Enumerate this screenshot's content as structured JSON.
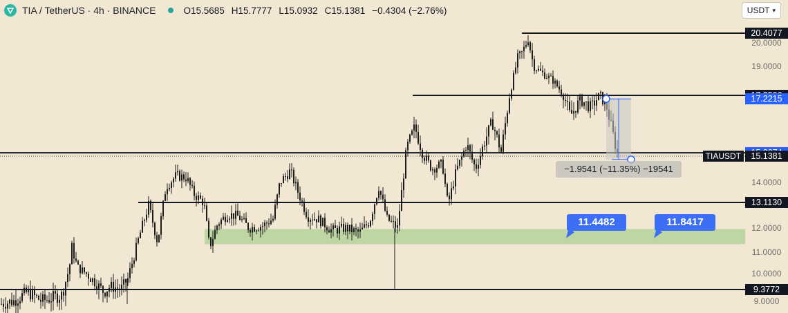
{
  "header": {
    "title": "TIA / TetherUS · 4h · BINANCE",
    "open": "O15.5685",
    "high": "H15.7777",
    "low": "L15.0932",
    "close": "C15.1381",
    "change": "−0.4304 (−2.76%)"
  },
  "currency": {
    "label": "USDT"
  },
  "symbol_tag": "TIAUSDT",
  "measure": {
    "text": "−1.9541 (−11.35%) −19541"
  },
  "chart_data": {
    "type": "candlestick",
    "symbol": "TIAUSDT",
    "timeframe": "4h",
    "exchange": "BINANCE",
    "ylim": [
      8.9,
      21.0
    ],
    "y_ticks": [
      "9.0000",
      "10.0000",
      "11.0000",
      "12.0000",
      "14.0000",
      "19.0000",
      "20.0000"
    ],
    "current_price": "15.1381",
    "horizontal_levels": [
      {
        "value": 20.4077,
        "label": "20.4077"
      },
      {
        "value": 17.3506,
        "label": "17.3506"
      },
      {
        "value": 15.2598,
        "label": "15.2598"
      },
      {
        "value": 13.113,
        "label": "13.1130"
      },
      {
        "value": 9.3772,
        "label": "9.3772"
      }
    ],
    "measure_labels": [
      {
        "value": 17.2215,
        "label": "17.2215"
      },
      {
        "value": 15.2674,
        "label": "15.2674"
      }
    ],
    "support_zone": {
      "low": 11.4482,
      "high": 11.8417
    },
    "callouts": [
      {
        "text": "11.4482",
        "value": 11.4482
      },
      {
        "text": "11.8417",
        "value": 11.8417
      }
    ],
    "price_path_anchors": [
      [
        0,
        8.9
      ],
      [
        20,
        9.0
      ],
      [
        40,
        9.3
      ],
      [
        60,
        9.0
      ],
      [
        90,
        9.2
      ],
      [
        100,
        10.2
      ],
      [
        104,
        11.2
      ],
      [
        112,
        10.3
      ],
      [
        125,
        10.0
      ],
      [
        140,
        9.6
      ],
      [
        150,
        9.3
      ],
      [
        160,
        9.5
      ],
      [
        175,
        9.4
      ],
      [
        185,
        9.8
      ],
      [
        200,
        11.5
      ],
      [
        215,
        13.0
      ],
      [
        228,
        11.4
      ],
      [
        240,
        13.8
      ],
      [
        255,
        14.3
      ],
      [
        270,
        14.2
      ],
      [
        280,
        13.5
      ],
      [
        295,
        13.1
      ],
      [
        303,
        11.2
      ],
      [
        315,
        12.2
      ],
      [
        330,
        12.6
      ],
      [
        345,
        12.5
      ],
      [
        360,
        12.0
      ],
      [
        380,
        12.1
      ],
      [
        395,
        12.4
      ],
      [
        405,
        14.0
      ],
      [
        420,
        14.5
      ],
      [
        432,
        13.5
      ],
      [
        445,
        12.5
      ],
      [
        460,
        12.4
      ],
      [
        480,
        11.9
      ],
      [
        500,
        12.0
      ],
      [
        520,
        11.8
      ],
      [
        535,
        12.3
      ],
      [
        548,
        13.8
      ],
      [
        560,
        12.4
      ],
      [
        575,
        12.0
      ],
      [
        588,
        15.4
      ],
      [
        600,
        16.2
      ],
      [
        612,
        15.2
      ],
      [
        625,
        14.6
      ],
      [
        640,
        14.8
      ],
      [
        648,
        13.0
      ],
      [
        660,
        14.5
      ],
      [
        675,
        15.6
      ],
      [
        688,
        14.6
      ],
      [
        700,
        15.6
      ],
      [
        712,
        16.4
      ],
      [
        725,
        15.3
      ],
      [
        735,
        17.0
      ],
      [
        748,
        19.3
      ],
      [
        756,
        19.6
      ],
      [
        764,
        20.2
      ],
      [
        772,
        19.0
      ],
      [
        785,
        18.6
      ],
      [
        800,
        18.2
      ],
      [
        815,
        17.4
      ],
      [
        825,
        16.6
      ],
      [
        840,
        17.2
      ],
      [
        855,
        16.9
      ],
      [
        868,
        17.4
      ],
      [
        878,
        16.9
      ],
      [
        888,
        15.8
      ],
      [
        894,
        15.1
      ]
    ]
  }
}
